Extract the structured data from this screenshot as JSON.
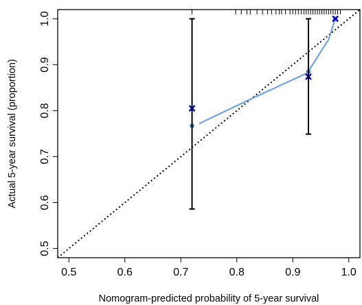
{
  "chart_data": {
    "type": "line",
    "xlabel": "Nomogram-predicted probability of 5-year survival",
    "ylabel": "Actual 5-year survival (proportion)",
    "xlim": [
      0.48,
      1.02
    ],
    "ylim": [
      0.48,
      1.02
    ],
    "x_ticks": [
      0.5,
      0.6,
      0.7,
      0.8,
      0.9,
      1.0
    ],
    "x_tick_labels": [
      "0.5",
      "0.6",
      "0.7",
      "0.8",
      "0.9",
      "1.0"
    ],
    "y_ticks": [
      0.5,
      0.6,
      0.7,
      0.8,
      0.9,
      1.0
    ],
    "y_tick_labels": [
      "0.5",
      "0.6",
      "0.7",
      "0.8",
      "0.9",
      "1.0"
    ],
    "grid": false,
    "reference_line": {
      "from": [
        0.48,
        0.48
      ],
      "to": [
        1.02,
        1.02
      ],
      "style": "dotted",
      "color": "#000000"
    },
    "series": [
      {
        "kind": "points",
        "marker": "dot",
        "color": "#3b6fb0",
        "x": [
          0.72,
          0.928,
          0.976
        ],
        "y": [
          0.767,
          0.885,
          1.0
        ]
      },
      {
        "kind": "line",
        "color": "#6fa3e6",
        "x": [
          0.733,
          0.826,
          0.926,
          0.964,
          0.976
        ],
        "y": [
          0.772,
          0.826,
          0.882,
          0.955,
          1.0
        ]
      },
      {
        "kind": "points",
        "marker": "x",
        "color": "#0000cc",
        "x": [
          0.72,
          0.928,
          0.976
        ],
        "y": [
          0.805,
          0.874,
          1.0
        ]
      },
      {
        "kind": "error_bars",
        "color": "#000000",
        "x": [
          0.72,
          0.928
        ],
        "low": [
          0.586,
          0.749
        ],
        "high": [
          1.0,
          1.0
        ]
      }
    ],
    "rug_x": [
      0.72,
      0.798,
      0.808,
      0.818,
      0.824,
      0.836,
      0.846,
      0.855,
      0.862,
      0.87,
      0.876,
      0.88,
      0.887,
      0.895,
      0.9,
      0.905,
      0.91,
      0.915,
      0.92,
      0.924,
      0.928,
      0.932,
      0.936,
      0.94,
      0.944,
      0.948,
      0.952,
      0.956,
      0.96,
      0.964,
      0.968,
      0.972,
      0.976,
      0.98,
      0.985
    ]
  }
}
